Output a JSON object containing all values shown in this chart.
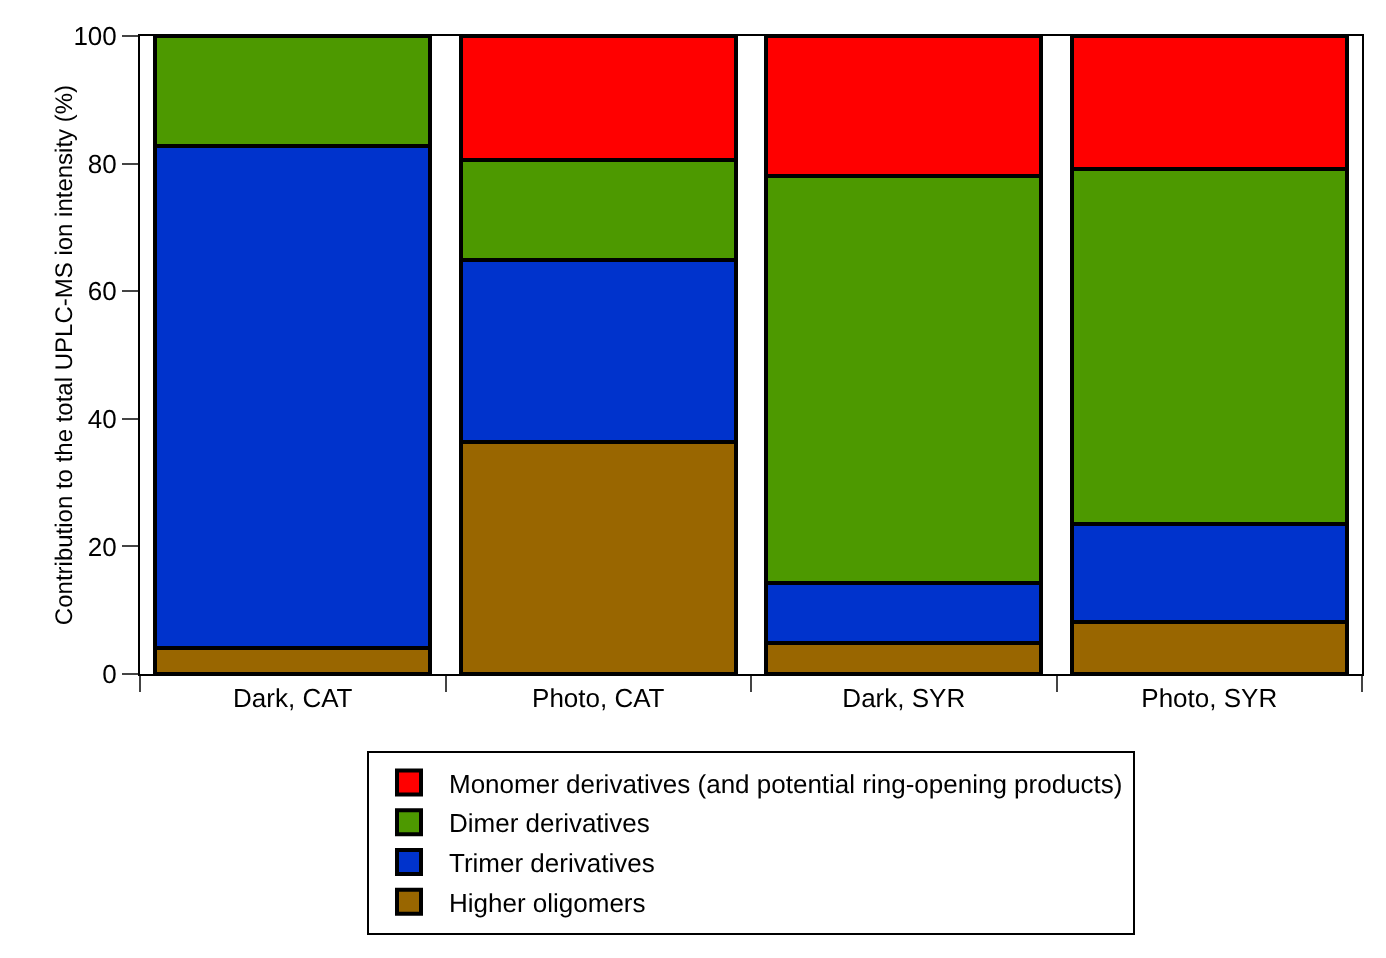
{
  "chart_data": {
    "type": "bar",
    "stacked": true,
    "ylabel": "Contribution to the total UPLC-MS ion intensity (%)",
    "categories": [
      "Dark, CAT",
      "Photo, CAT",
      "Dark, SYR",
      "Photo, SYR"
    ],
    "series": [
      {
        "name": "Higher oligomers",
        "color": "#996600",
        "values": [
          4.1,
          36.3,
          4.8,
          8.1
        ]
      },
      {
        "name": "Trimer derivatives",
        "color": "#0033cc",
        "values": [
          78.6,
          28.6,
          9.5,
          15.4
        ]
      },
      {
        "name": "Dimer derivatives",
        "color": "#4d9900",
        "values": [
          17.3,
          15.6,
          63.8,
          55.7
        ]
      },
      {
        "name": "Monomer derivatives (and potential ring-opening products)",
        "color": "#ff0000",
        "values": [
          null,
          19.5,
          21.9,
          20.8
        ]
      }
    ],
    "ylim": [
      0,
      100
    ],
    "yticks": [
      0,
      20,
      40,
      60,
      80,
      100
    ],
    "grid": false,
    "legend": "bottom"
  }
}
